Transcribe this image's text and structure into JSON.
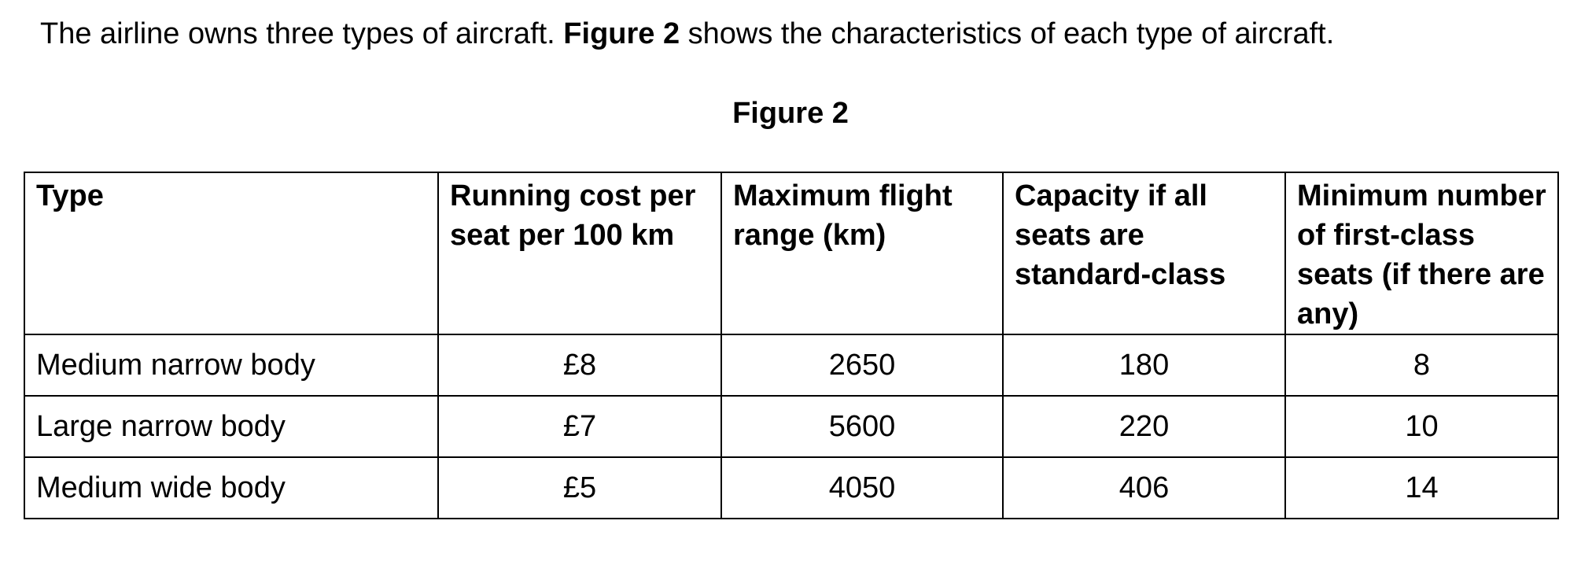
{
  "intro": {
    "part1": "The airline owns three types of aircraft.  ",
    "figure_ref": "Figure 2",
    "part2": " shows the characteristics of each type of aircraft."
  },
  "figure_caption": "Figure 2",
  "table": {
    "headers": [
      "Type",
      "Running cost per seat per 100 km",
      "Maximum flight range (km)",
      "Capacity if all seats are standard-class",
      "Minimum number of first-class seats (if there are any)"
    ],
    "rows": [
      [
        "Medium narrow body",
        "£8",
        "2650",
        "180",
        "8"
      ],
      [
        "Large narrow body",
        "£7",
        "5600",
        "220",
        "10"
      ],
      [
        "Medium wide body",
        "£5",
        "4050",
        "406",
        "14"
      ]
    ]
  }
}
